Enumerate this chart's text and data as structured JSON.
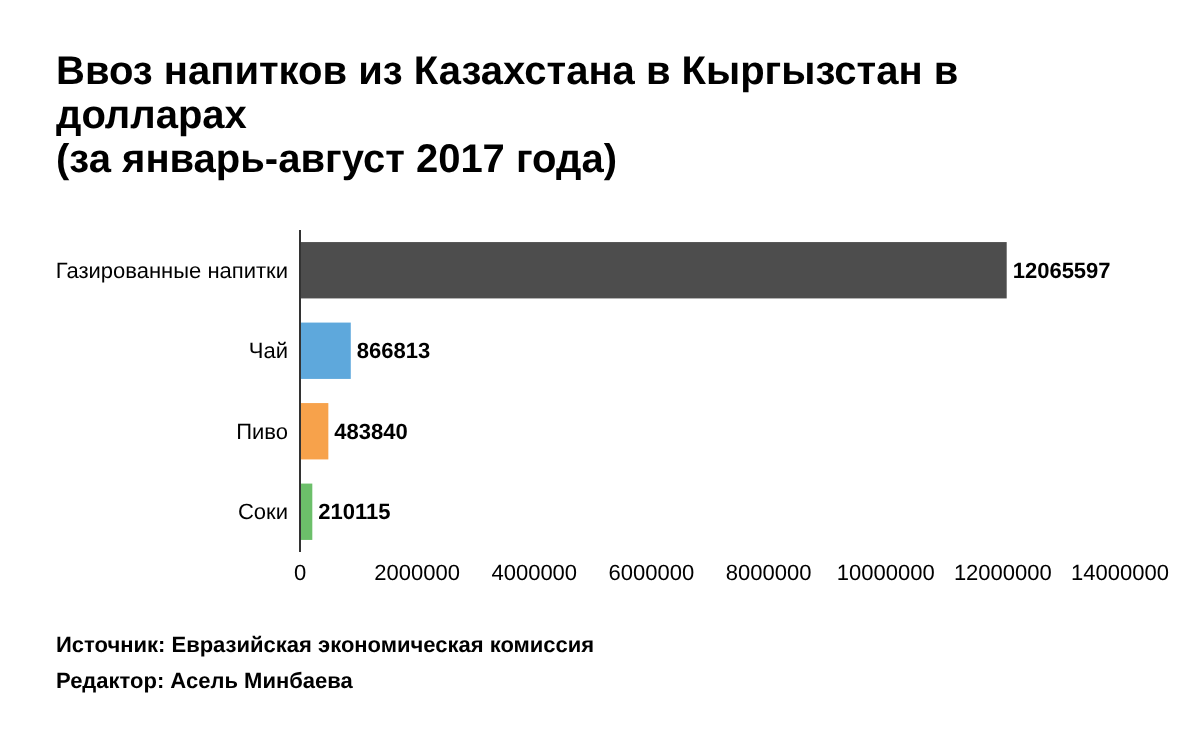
{
  "chart_data": {
    "type": "bar",
    "orientation": "horizontal",
    "title": "Ввоз напитков из Казахстана в Кыргызстан в долларах",
    "subtitle": "(за январь-август 2017 года)",
    "categories": [
      "Газированные напитки",
      "Чай",
      "Пиво",
      "Соки"
    ],
    "values": [
      12065597,
      866813,
      483840,
      210115
    ],
    "colors": [
      "#4d4d4d",
      "#5ea8dc",
      "#f7a24b",
      "#6cbf6a"
    ],
    "xlim": [
      0,
      14000000
    ],
    "xticks": [
      0,
      2000000,
      4000000,
      6000000,
      8000000,
      10000000,
      12000000,
      14000000
    ],
    "data_labels": true,
    "annotations": [
      "Источник: Евразийская экономическая комиссия",
      "Редактор: Асель Минбаева"
    ]
  }
}
